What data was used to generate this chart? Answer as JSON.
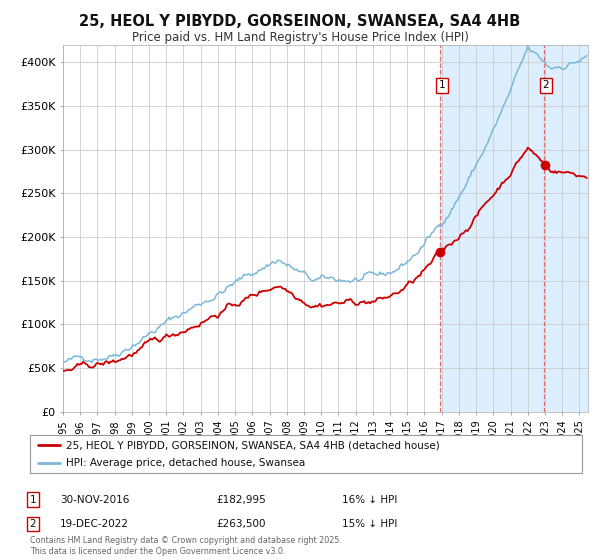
{
  "title": "25, HEOL Y PIBYDD, GORSEINON, SWANSEA, SA4 4HB",
  "subtitle": "Price paid vs. HM Land Registry's House Price Index (HPI)",
  "legend_line1": "25, HEOL Y PIBYDD, GORSEINON, SWANSEA, SA4 4HB (detached house)",
  "legend_line2": "HPI: Average price, detached house, Swansea",
  "point1_date_str": "30-NOV-2016",
  "point1_price": 182995,
  "point1_price_str": "£182,995",
  "point1_hpi_pct": "16% ↓ HPI",
  "point2_date_str": "19-DEC-2022",
  "point2_price": 263500,
  "point2_price_str": "£263,500",
  "point2_hpi_pct": "15% ↓ HPI",
  "point1_date_num": 2016.917,
  "point2_date_num": 2022.962,
  "hpi_color": "#7ab8d9",
  "price_color": "#cc0000",
  "background_color": "#ffffff",
  "shaded_bg_color": "#ddeeff",
  "grid_color": "#cccccc",
  "dashed_line_color": "#e07070",
  "copyright_text": "Contains HM Land Registry data © Crown copyright and database right 2025.\nThis data is licensed under the Open Government Licence v3.0.",
  "ylim_max": 420000,
  "xlim_start": 1995.0,
  "xlim_end": 2025.5,
  "yticks": [
    0,
    50000,
    100000,
    150000,
    200000,
    250000,
    300000,
    350000,
    400000
  ],
  "ytick_labels": [
    "£0",
    "£50K",
    "£100K",
    "£150K",
    "£200K",
    "£250K",
    "£300K",
    "£350K",
    "£400K"
  ]
}
